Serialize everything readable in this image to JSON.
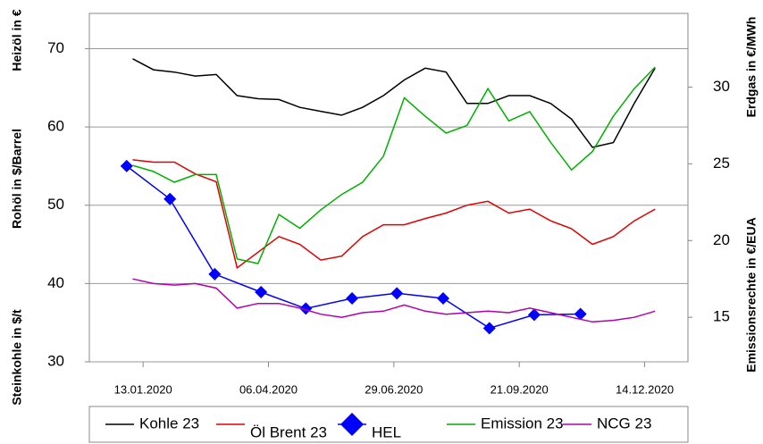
{
  "chart_data": {
    "type": "line",
    "x": [
      "06.01.2020",
      "20.01.2020",
      "03.02.2020",
      "17.02.2020",
      "02.03.2020",
      "16.03.2020",
      "30.03.2020",
      "13.04.2020",
      "27.04.2020",
      "11.05.2020",
      "25.05.2020",
      "08.06.2020",
      "22.06.2020",
      "06.07.2020",
      "20.07.2020",
      "03.08.2020",
      "17.08.2020",
      "31.08.2020",
      "14.09.2020",
      "28.09.2020",
      "12.10.2020",
      "26.10.2020",
      "09.11.2020",
      "23.11.2020",
      "07.12.2020",
      "21.12.2020"
    ],
    "xlim": [
      "08.12.2019",
      "12.01.2021"
    ],
    "xticks": [
      "13.01.2020",
      "06.04.2020",
      "29.06.2020",
      "21.09.2020",
      "14.12.2020"
    ],
    "ylim": [
      30,
      74.5
    ],
    "yticks": [
      30,
      40,
      50,
      60,
      70
    ],
    "y2lim": [
      12.1,
      34.8
    ],
    "y2ticks": [
      15,
      20,
      25,
      30
    ],
    "grid": true,
    "legend": "bottom",
    "y_axis_labels": [
      {
        "text": "Steinkohle in $/t",
        "color": "#000000"
      },
      {
        "text": "Rohöl in $/Barrel",
        "color": "#e00000"
      },
      {
        "text": "Heizöl in €",
        "color": "#0000e0"
      }
    ],
    "y2_axis_labels": [
      {
        "text": "Emissionsrechte in €/EUA",
        "color": "#008000"
      },
      {
        "text": "Erdgas in €/MWh",
        "color": "#a000c0"
      }
    ],
    "series": [
      {
        "name": "Kohle 23",
        "color": "#000000",
        "values": [
          68.7,
          67.3,
          67,
          66.5,
          66.7,
          64,
          63.6,
          63.5,
          62.5,
          62,
          61.5,
          62.5,
          64,
          66,
          67.5,
          67,
          63,
          63,
          64,
          64,
          63,
          61,
          57.4,
          58,
          63,
          67.5
        ]
      },
      {
        "name": "Öl Brent 23",
        "color": "#e00000",
        "values": [
          55.8,
          55.5,
          55.5,
          54,
          53,
          42,
          44,
          46,
          45,
          43,
          43.5,
          46,
          47.5,
          47.5,
          48.3,
          49,
          50,
          50.5,
          49,
          49.5,
          48,
          47,
          45,
          46,
          48,
          49.5
        ]
      },
      {
        "name": "HEL",
        "color": "#0000ff",
        "marker": "diamond",
        "x": [
          "02.01.2020",
          "31.01.2020",
          "01.03.2020",
          "01.04.2020",
          "01.05.2020",
          "01.06.2020",
          "01.07.2020",
          "01.08.2020",
          "01.09.2020",
          "01.10.2020",
          "01.11.2020"
        ],
        "values": [
          55,
          50.8,
          41.2,
          38.9,
          36.8,
          38.1,
          38.75,
          38.1,
          34.3,
          36,
          36.1
        ]
      },
      {
        "name": "Emission 23",
        "color": "#00b000",
        "axis": "y2",
        "values": [
          24.9,
          24.5,
          23.8,
          24.3,
          24.3,
          18.8,
          18.5,
          21.7,
          20.8,
          22,
          23,
          23.8,
          25.5,
          29.3,
          28.1,
          27,
          27.5,
          29.9,
          27.8,
          28.4,
          26.4,
          24.6,
          25.8,
          28.1,
          29.9,
          31.3
        ]
      },
      {
        "name": "NCG 23",
        "color": "#b000b0",
        "axis": "y2",
        "values": [
          17.5,
          17.2,
          17.1,
          17.2,
          16.9,
          15.6,
          15.9,
          15.9,
          15.6,
          15.2,
          15,
          15.3,
          15.4,
          15.8,
          15.4,
          15.2,
          15.3,
          15.4,
          15.3,
          15.6,
          15.3,
          15,
          14.7,
          14.8,
          15,
          15.4
        ]
      }
    ]
  }
}
